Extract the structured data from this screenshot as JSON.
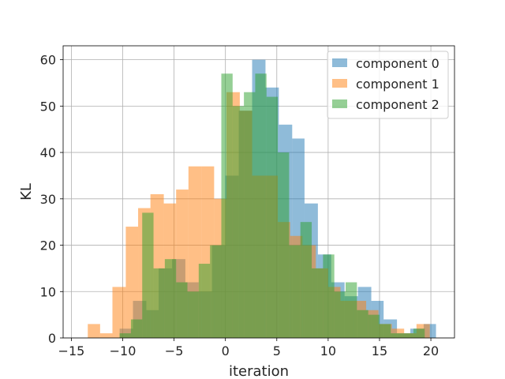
{
  "chart_data": {
    "type": "bar",
    "title": "",
    "xlabel": "iteration",
    "ylabel": "KL",
    "xlim": [
      -15.8,
      22.3
    ],
    "ylim": [
      0,
      63
    ],
    "xticks": [
      -15,
      -10,
      -5,
      0,
      5,
      10,
      15,
      20
    ],
    "xtick_labels": [
      "−15",
      "−10",
      "−5",
      "0",
      "5",
      "10",
      "15",
      "20"
    ],
    "yticks": [
      0,
      10,
      20,
      30,
      40,
      50,
      60
    ],
    "ytick_labels": [
      "0",
      "10",
      "20",
      "30",
      "40",
      "50",
      "60"
    ],
    "grid": true,
    "legend_position": "top-right",
    "opacity": 0.5,
    "series": [
      {
        "name": "component 0",
        "color": "#1f77b4",
        "bins": [
          [
            -10.3,
            -9.0,
            2
          ],
          [
            -9.0,
            -7.7,
            8
          ],
          [
            -7.7,
            -6.5,
            6
          ],
          [
            -6.5,
            -5.2,
            15
          ],
          [
            -5.2,
            -3.9,
            17
          ],
          [
            -3.9,
            -2.6,
            12
          ],
          [
            -2.6,
            -1.3,
            10
          ],
          [
            -1.3,
            0.0,
            20
          ],
          [
            0.0,
            1.3,
            35
          ],
          [
            1.3,
            2.6,
            49
          ],
          [
            2.6,
            3.9,
            60
          ],
          [
            3.9,
            5.2,
            54
          ],
          [
            5.2,
            6.5,
            46
          ],
          [
            6.5,
            7.7,
            43
          ],
          [
            7.7,
            9.0,
            29
          ],
          [
            9.0,
            10.3,
            18
          ],
          [
            10.3,
            11.6,
            12
          ],
          [
            11.6,
            12.9,
            9
          ],
          [
            12.9,
            14.2,
            11
          ],
          [
            14.2,
            15.4,
            8
          ],
          [
            15.4,
            16.7,
            4
          ],
          [
            16.7,
            18.0,
            1
          ],
          [
            18.0,
            19.3,
            2
          ],
          [
            19.3,
            20.5,
            3
          ]
        ]
      },
      {
        "name": "component 1",
        "color": "#ff7f0e",
        "bins": [
          [
            -13.4,
            -12.2,
            3
          ],
          [
            -12.2,
            -11.0,
            1
          ],
          [
            -11.0,
            -9.7,
            11
          ],
          [
            -9.7,
            -8.5,
            24
          ],
          [
            -8.5,
            -7.3,
            28
          ],
          [
            -7.3,
            -6.0,
            31
          ],
          [
            -6.0,
            -4.8,
            29
          ],
          [
            -4.8,
            -3.6,
            32
          ],
          [
            -3.6,
            -2.3,
            37
          ],
          [
            -2.3,
            -1.1,
            37
          ],
          [
            -1.1,
            0.1,
            30
          ],
          [
            0.1,
            1.4,
            53
          ],
          [
            1.4,
            2.6,
            49
          ],
          [
            2.6,
            3.8,
            35
          ],
          [
            3.8,
            5.1,
            35
          ],
          [
            5.1,
            6.3,
            25
          ],
          [
            6.3,
            7.5,
            22
          ],
          [
            7.5,
            8.8,
            20
          ],
          [
            8.8,
            10.0,
            15
          ],
          [
            10.0,
            11.2,
            11
          ],
          [
            11.2,
            12.5,
            8
          ],
          [
            12.5,
            13.7,
            8
          ],
          [
            13.7,
            14.9,
            6
          ],
          [
            14.9,
            16.2,
            3
          ],
          [
            16.2,
            17.4,
            2
          ],
          [
            17.4,
            18.6,
            1
          ],
          [
            18.6,
            19.9,
            3
          ]
        ]
      },
      {
        "name": "component 2",
        "color": "#2ca02c",
        "bins": [
          [
            -10.3,
            -9.2,
            1
          ],
          [
            -9.2,
            -8.1,
            4
          ],
          [
            -8.1,
            -7.0,
            27
          ],
          [
            -7.0,
            -5.9,
            15
          ],
          [
            -5.9,
            -4.8,
            17
          ],
          [
            -4.8,
            -3.7,
            12
          ],
          [
            -3.7,
            -2.6,
            10
          ],
          [
            -2.6,
            -1.5,
            16
          ],
          [
            -1.5,
            -0.4,
            20
          ],
          [
            -0.4,
            0.7,
            57
          ],
          [
            0.7,
            1.8,
            50
          ],
          [
            1.8,
            2.9,
            53
          ],
          [
            2.9,
            4.0,
            57
          ],
          [
            4.0,
            5.1,
            52
          ],
          [
            5.1,
            6.2,
            40
          ],
          [
            6.2,
            7.3,
            20
          ],
          [
            7.3,
            8.4,
            25
          ],
          [
            8.4,
            9.5,
            15
          ],
          [
            9.5,
            10.6,
            18
          ],
          [
            10.6,
            11.7,
            10
          ],
          [
            11.7,
            12.8,
            12
          ],
          [
            12.8,
            13.9,
            6
          ],
          [
            13.9,
            15.0,
            5
          ],
          [
            15.0,
            16.1,
            3
          ],
          [
            16.1,
            17.2,
            1
          ],
          [
            17.2,
            18.3,
            1
          ],
          [
            18.3,
            19.4,
            2
          ]
        ]
      }
    ]
  }
}
